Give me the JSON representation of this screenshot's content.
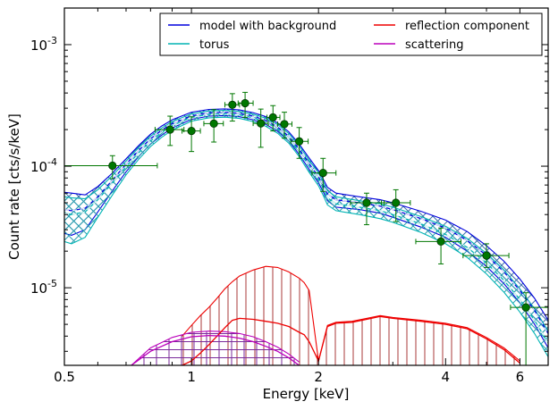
{
  "chart_data": {
    "type": "line",
    "xlabel": "Energy [keV]",
    "ylabel": "Count rate [cts/s/keV]",
    "xscale": "log",
    "yscale": "log",
    "xlim": [
      0.5,
      7.0
    ],
    "ylim": [
      2.3e-06,
      0.002
    ],
    "grid": false,
    "legend_position": "top-right",
    "x_ticks": [
      {
        "value": 0.5,
        "label": "0.5"
      },
      {
        "value": 1,
        "label": "1"
      },
      {
        "value": 2,
        "label": "2"
      },
      {
        "value": 4,
        "label": "4"
      },
      {
        "value": 6,
        "label": "6"
      }
    ],
    "y_ticks": [
      {
        "value": 1e-05,
        "base": "10",
        "exp": "-5"
      },
      {
        "value": 0.0001,
        "base": "10",
        "exp": "-4"
      },
      {
        "value": 0.001,
        "base": "10",
        "exp": "-3"
      }
    ],
    "colors": {
      "model": "#0000dd",
      "torus": "#00b4b4",
      "reflection": "#ee0000",
      "scattering": "#bb00bb",
      "data": "#007700",
      "hatch_model": "#3a6fa8",
      "hatch_reflection": "#a83a3a",
      "hatch_scattering": "#7a2a9a"
    },
    "legend": [
      {
        "label": "model with background",
        "series": "model"
      },
      {
        "label": "reflection component",
        "series": "reflection"
      },
      {
        "label": "torus",
        "series": "torus"
      },
      {
        "label": "scattering",
        "series": "scattering"
      }
    ],
    "series": [
      {
        "key": "model",
        "x": [
          0.5,
          0.52,
          0.56,
          0.6,
          0.65,
          0.7,
          0.75,
          0.8,
          0.85,
          0.9,
          1.0,
          1.1,
          1.2,
          1.3,
          1.4,
          1.5,
          1.6,
          1.7,
          1.8,
          1.9,
          2.0,
          2.05,
          2.1,
          2.2,
          2.5,
          2.8,
          3.0,
          3.5,
          4.0,
          4.5,
          5.0,
          5.5,
          6.0,
          6.5,
          7.0
        ],
        "y": [
          4.4e-05,
          4.3e-05,
          4.5e-05,
          5.6e-05,
          7.7e-05,
          0.000104,
          0.000135,
          0.000168,
          0.000198,
          0.000224,
          0.00026,
          0.000275,
          0.000278,
          0.000272,
          0.000258,
          0.000238,
          0.00021,
          0.000176,
          0.000138,
          0.000105,
          8.2e-05,
          7e-05,
          5.9e-05,
          5.3e-05,
          5e-05,
          4.7e-05,
          4.4e-05,
          3.7e-05,
          3.1e-05,
          2.45e-05,
          1.85e-05,
          1.35e-05,
          9.5e-06,
          6.5e-06,
          4.2e-06
        ]
      },
      {
        "key": "torus",
        "x": [
          0.5,
          0.52,
          0.56,
          0.6,
          0.65,
          0.7,
          0.75,
          0.8,
          0.85,
          0.9,
          1.0,
          1.1,
          1.2,
          1.3,
          1.4,
          1.5,
          1.6,
          1.7,
          1.8,
          1.9,
          2.0,
          2.05,
          2.1,
          2.2,
          2.5,
          2.8,
          3.0,
          3.5,
          4.0,
          4.5,
          5.0,
          5.5,
          6.0,
          6.5,
          7.0
        ],
        "y": [
          4.1e-05,
          4e-05,
          4.2e-05,
          5.3e-05,
          7.3e-05,
          9.9e-05,
          0.000129,
          0.000161,
          0.00019,
          0.000216,
          0.000252,
          0.000267,
          0.00027,
          0.000264,
          0.00025,
          0.00023,
          0.000203,
          0.00017,
          0.000133,
          0.0001,
          7.8e-05,
          6.6e-05,
          5.5e-05,
          4.9e-05,
          4.6e-05,
          4.3e-05,
          4e-05,
          3.35e-05,
          2.75e-05,
          2.15e-05,
          1.6e-05,
          1.15e-05,
          8e-06,
          5.4e-06,
          3.5e-06
        ]
      },
      {
        "key": "reflection",
        "x": [
          0.95,
          1.0,
          1.05,
          1.1,
          1.15,
          1.2,
          1.25,
          1.3,
          1.4,
          1.5,
          1.6,
          1.7,
          1.8,
          1.85,
          1.9,
          2.0,
          2.1,
          2.2,
          2.4,
          2.6,
          2.8,
          3.0,
          3.5,
          4.0,
          4.5,
          5.0,
          5.5,
          6.0
        ],
        "y": [
          2.3e-06,
          2.5e-06,
          2.9e-06,
          3.4e-06,
          4e-06,
          4.7e-06,
          5.4e-06,
          5.6e-06,
          5.5e-06,
          5.3e-06,
          5.1e-06,
          4.8e-06,
          4.3e-06,
          4.1e-06,
          3.6e-06,
          2.5e-06,
          4.8e-06,
          5.1e-06,
          5.2e-06,
          5.5e-06,
          5.8e-06,
          5.6e-06,
          5.3e-06,
          5e-06,
          4.6e-06,
          3.8e-06,
          3.1e-06,
          2.4e-06
        ]
      },
      {
        "key": "scattering",
        "x": [
          0.72,
          0.8,
          0.9,
          1.0,
          1.1,
          1.2,
          1.3,
          1.4,
          1.5,
          1.6,
          1.7,
          1.8
        ],
        "y": [
          2.3e-06,
          3e-06,
          3.6e-06,
          3.95e-06,
          4.05e-06,
          4e-06,
          3.85e-06,
          3.6e-06,
          3.3e-06,
          3e-06,
          2.65e-06,
          2.3e-06
        ]
      }
    ],
    "bands": [
      {
        "key": "model",
        "x": [
          0.5,
          0.52,
          0.56,
          0.6,
          0.65,
          0.7,
          0.75,
          0.8,
          0.85,
          0.9,
          1.0,
          1.1,
          1.2,
          1.3,
          1.4,
          1.5,
          1.6,
          1.7,
          1.8,
          1.9,
          2.0,
          2.05,
          2.1,
          2.2,
          2.5,
          2.8,
          3.0,
          3.5,
          4.0,
          4.5,
          5.0,
          5.5,
          6.0,
          6.5,
          7.0
        ],
        "upper": [
          6.1e-05,
          6e-05,
          5.8e-05,
          6.8e-05,
          8.8e-05,
          0.000115,
          0.000148,
          0.000183,
          0.000214,
          0.000241,
          0.000278,
          0.000293,
          0.000296,
          0.00029,
          0.000276,
          0.000256,
          0.000227,
          0.000192,
          0.000152,
          0.000117,
          9.2e-05,
          7.9e-05,
          6.7e-05,
          6e-05,
          5.6e-05,
          5.3e-05,
          5e-05,
          4.25e-05,
          3.6e-05,
          2.9e-05,
          2.22e-05,
          1.65e-05,
          1.18e-05,
          8.2e-06,
          5.4e-06
        ],
        "lower": [
          2.8e-05,
          2.7e-05,
          3e-05,
          4.2e-05,
          6.3e-05,
          9e-05,
          0.00012,
          0.000152,
          0.00018,
          0.000206,
          0.000243,
          0.000258,
          0.000261,
          0.000255,
          0.000241,
          0.000221,
          0.000194,
          0.000161,
          0.000125,
          9.4e-05,
          7.3e-05,
          6.2e-05,
          5.2e-05,
          4.6e-05,
          4.4e-05,
          4.1e-05,
          3.8e-05,
          3.15e-05,
          2.6e-05,
          2e-05,
          1.5e-05,
          1.08e-05,
          7.5e-06,
          5e-06,
          3.2e-06
        ]
      },
      {
        "key": "torus",
        "x": [
          0.5,
          0.52,
          0.56,
          0.6,
          0.65,
          0.7,
          0.75,
          0.8,
          0.85,
          0.9,
          1.0,
          1.1,
          1.2,
          1.3,
          1.4,
          1.5,
          1.6,
          1.7,
          1.8,
          1.9,
          2.0,
          2.05,
          2.1,
          2.2,
          2.5,
          2.8,
          3.0,
          3.5,
          4.0,
          4.5,
          5.0,
          5.5,
          6.0,
          6.5,
          7.0
        ],
        "upper": [
          5.6e-05,
          5.5e-05,
          5.4e-05,
          6.4e-05,
          8.4e-05,
          0.00011,
          0.000142,
          0.000176,
          0.000206,
          0.000233,
          0.00027,
          0.000285,
          0.000288,
          0.000282,
          0.000268,
          0.000248,
          0.00022,
          0.000186,
          0.000147,
          0.000112,
          8.8e-05,
          7.5e-05,
          6.3e-05,
          5.6e-05,
          5.2e-05,
          4.9e-05,
          4.6e-05,
          3.85e-05,
          3.2e-05,
          2.55e-05,
          1.92e-05,
          1.4e-05,
          9.8e-06,
          6.7e-06,
          4.4e-06
        ],
        "lower": [
          2.4e-05,
          2.3e-05,
          2.6e-05,
          3.8e-05,
          5.8e-05,
          8.5e-05,
          0.000114,
          0.000145,
          0.000173,
          0.000198,
          0.000235,
          0.00025,
          0.000253,
          0.000247,
          0.000233,
          0.000213,
          0.000187,
          0.000155,
          0.00012,
          8.9e-05,
          6.9e-05,
          5.8e-05,
          4.8e-05,
          4.3e-05,
          4e-05,
          3.7e-05,
          3.45e-05,
          2.85e-05,
          2.3e-05,
          1.78e-05,
          1.3e-05,
          9.2e-06,
          6.3e-06,
          4.2e-06,
          2.7e-06
        ]
      },
      {
        "key": "reflection",
        "x": [
          0.95,
          1.0,
          1.05,
          1.1,
          1.15,
          1.2,
          1.25,
          1.3,
          1.4,
          1.5,
          1.6,
          1.7,
          1.8,
          1.85,
          1.9,
          2.0,
          2.1,
          2.2,
          2.4,
          2.6,
          2.8,
          3.0,
          3.5,
          4.0,
          4.5,
          5.0,
          5.5,
          6.0
        ],
        "upper": [
          4e-06,
          4.9e-06,
          5.9e-06,
          6.9e-06,
          8.2e-06,
          9.8e-06,
          1.12e-05,
          1.25e-05,
          1.4e-05,
          1.5e-05,
          1.47e-05,
          1.35e-05,
          1.2e-05,
          1.1e-05,
          9.5e-06,
          2.5e-06,
          4.9e-06,
          5.2e-06,
          5.3e-06,
          5.6e-06,
          5.9e-06,
          5.7e-06,
          5.4e-06,
          5.1e-06,
          4.7e-06,
          3.9e-06,
          3.2e-06,
          2.5e-06
        ],
        "lower": [
          2.3e-06,
          2.3e-06,
          2.3e-06,
          2.3e-06,
          2.3e-06,
          2.3e-06,
          2.3e-06,
          2.3e-06,
          2.3e-06,
          2.3e-06,
          2.3e-06,
          2.3e-06,
          2.3e-06,
          2.3e-06,
          2.3e-06,
          2.3e-06,
          2.3e-06,
          2.3e-06,
          2.3e-06,
          2.3e-06,
          2.3e-06,
          2.3e-06,
          2.3e-06,
          2.3e-06,
          2.3e-06,
          2.3e-06,
          2.3e-06,
          2.3e-06
        ]
      },
      {
        "key": "scattering",
        "x": [
          0.72,
          0.8,
          0.9,
          1.0,
          1.1,
          1.2,
          1.3,
          1.4,
          1.5,
          1.6,
          1.7,
          1.8
        ],
        "upper": [
          2.3e-06,
          3.2e-06,
          3.9e-06,
          4.3e-06,
          4.4e-06,
          4.35e-06,
          4.2e-06,
          3.95e-06,
          3.6e-06,
          3.25e-06,
          2.85e-06,
          2.45e-06
        ],
        "lower": [
          2.3e-06,
          2.3e-06,
          2.3e-06,
          2.3e-06,
          2.3e-06,
          2.3e-06,
          2.3e-06,
          2.3e-06,
          2.3e-06,
          2.3e-06,
          2.3e-06,
          2.3e-06
        ]
      }
    ],
    "data_points": [
      {
        "x": 0.65,
        "y": 0.000101,
        "xerr": [
          0.5,
          0.83
        ],
        "yerr": [
          7.9e-05,
          0.000122
        ]
      },
      {
        "x": 0.89,
        "y": 0.0002,
        "xerr": [
          0.82,
          0.96
        ],
        "yerr": [
          0.000148,
          0.000258
        ]
      },
      {
        "x": 1.0,
        "y": 0.000195,
        "xerr": [
          0.95,
          1.05
        ],
        "yerr": [
          0.000132,
          0.000255
        ]
      },
      {
        "x": 1.13,
        "y": 0.000224,
        "xerr": [
          1.07,
          1.19
        ],
        "yerr": [
          0.000158,
          0.000292
        ]
      },
      {
        "x": 1.25,
        "y": 0.00032,
        "xerr": [
          1.2,
          1.3
        ],
        "yerr": [
          0.000235,
          0.000395
        ]
      },
      {
        "x": 1.34,
        "y": 0.00033,
        "xerr": [
          1.29,
          1.4
        ],
        "yerr": [
          0.000252,
          0.000405
        ]
      },
      {
        "x": 1.46,
        "y": 0.000225,
        "xerr": [
          1.4,
          1.52
        ],
        "yerr": [
          0.000143,
          0.000295
        ]
      },
      {
        "x": 1.56,
        "y": 0.000252,
        "xerr": [
          1.51,
          1.62
        ],
        "yerr": [
          0.000195,
          0.000315
        ]
      },
      {
        "x": 1.66,
        "y": 0.000222,
        "xerr": [
          1.6,
          1.73
        ],
        "yerr": [
          0.00017,
          0.000278
        ]
      },
      {
        "x": 1.8,
        "y": 0.00016,
        "xerr": [
          1.72,
          1.89
        ],
        "yerr": [
          0.000116,
          0.000208
        ]
      },
      {
        "x": 2.05,
        "y": 8.8e-05,
        "xerr": [
          1.93,
          2.2
        ],
        "yerr": [
          6.2e-05,
          0.000116
        ]
      },
      {
        "x": 2.6,
        "y": 5e-05,
        "xerr": [
          2.38,
          2.86
        ],
        "yerr": [
          3.3e-05,
          6e-05
        ]
      },
      {
        "x": 3.05,
        "y": 5e-05,
        "xerr": [
          2.82,
          3.3
        ],
        "yerr": [
          3.5e-05,
          6.4e-05
        ]
      },
      {
        "x": 3.9,
        "y": 2.4e-05,
        "xerr": [
          3.4,
          4.35
        ],
        "yerr": [
          1.57e-05,
          3.1e-05
        ]
      },
      {
        "x": 5.0,
        "y": 1.84e-05,
        "xerr": [
          4.4,
          5.65
        ],
        "yerr": [
          1.47e-05,
          2.3e-05
        ]
      },
      {
        "x": 6.2,
        "y": 6.9e-06,
        "xerr": [
          5.7,
          7.0
        ],
        "yerr": [
          2.3e-06,
          9.1e-06
        ]
      }
    ]
  }
}
